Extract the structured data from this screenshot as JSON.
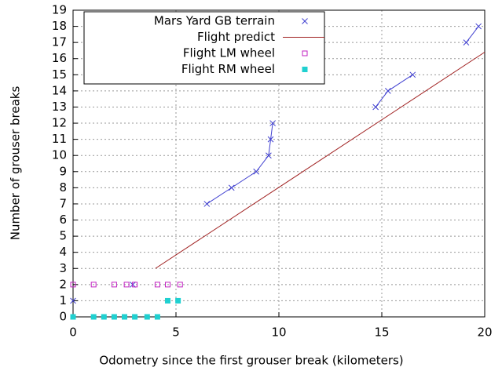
{
  "chart_data": {
    "type": "scatter",
    "xlabel": "Odometry since the first grouser break (kilometers)",
    "ylabel": "Number of grouser breaks",
    "xlim": [
      0,
      20
    ],
    "xticks": [
      0,
      5,
      10,
      15,
      20
    ],
    "ylim": [
      0,
      19
    ],
    "yticks": [
      0,
      1,
      2,
      3,
      4,
      5,
      6,
      7,
      8,
      9,
      10,
      11,
      12,
      13,
      14,
      15,
      16,
      17,
      18,
      19
    ],
    "grid": true,
    "legend": "top-left",
    "series": [
      {
        "name": "Mars Yard GB terrain",
        "color": "#4040d0",
        "marker": "x",
        "connect": true,
        "x": [
          0,
          2.9,
          6.5,
          7.7,
          8.9,
          9.5,
          9.6,
          9.7,
          14.7,
          15.3,
          16.5,
          19.1,
          19.7
        ],
        "values": [
          1,
          2,
          7,
          8,
          9,
          10,
          11,
          12,
          13,
          14,
          15,
          17,
          18
        ]
      },
      {
        "name": "Flight predict",
        "color": "#a02020",
        "marker": "line",
        "x": [
          4,
          20
        ],
        "values": [
          3,
          16.4
        ]
      },
      {
        "name": "Flight LM wheel",
        "color": "#c020c0",
        "marker": "open-square",
        "x": [
          0,
          1,
          2,
          2.6,
          3,
          4.1,
          4.6,
          5.2
        ],
        "values": [
          2,
          2,
          2,
          2,
          2,
          2,
          2,
          2
        ]
      },
      {
        "name": "Flight RM wheel",
        "color": "#20d0d0",
        "marker": "filled-square",
        "x": [
          0,
          1,
          1.5,
          2,
          2.5,
          3,
          3.6,
          4.1,
          4.6,
          5.1
        ],
        "values": [
          0,
          0,
          0,
          0,
          0,
          0,
          0,
          0,
          1,
          1
        ]
      }
    ]
  }
}
